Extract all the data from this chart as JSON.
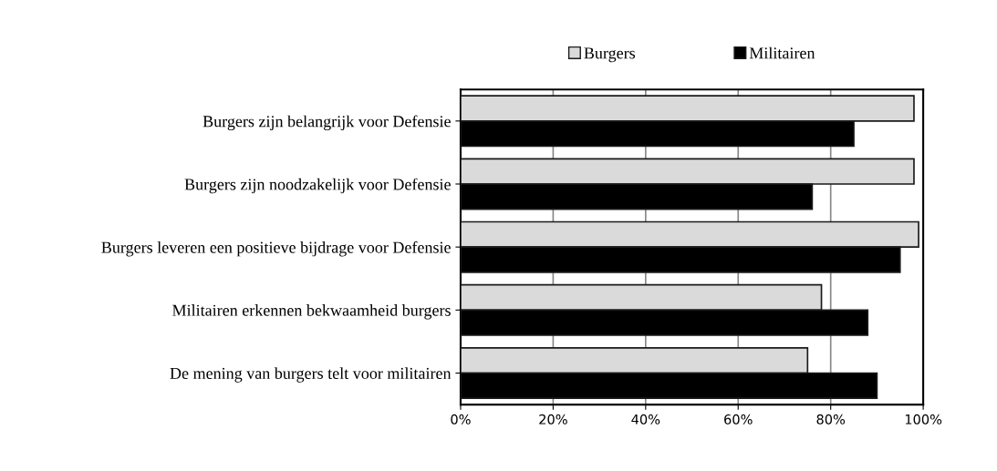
{
  "chart_data": {
    "type": "bar",
    "orientation": "horizontal",
    "categories": [
      "Burgers zijn belangrijk voor Defensie",
      "Burgers zijn noodzakelijk voor Defensie",
      "Burgers leveren een positieve bijdrage voor Defensie",
      "Militairen erkennen bekwaamheid burgers",
      "De mening van burgers telt voor militairen"
    ],
    "series": [
      {
        "name": "Burgers",
        "color": "#d9dad9",
        "values": [
          98,
          98,
          99,
          78,
          75
        ]
      },
      {
        "name": "Militairen",
        "color": "#000000",
        "values": [
          85,
          76,
          95,
          88,
          90
        ]
      }
    ],
    "xlim": [
      0,
      100
    ],
    "xticks": [
      {
        "value": 0,
        "label": "0%"
      },
      {
        "value": 20,
        "label": "20%"
      },
      {
        "value": 40,
        "label": "40%"
      },
      {
        "value": 60,
        "label": "60%"
      },
      {
        "value": 80,
        "label": "80%"
      },
      {
        "value": 100,
        "label": "100%"
      }
    ],
    "grid": "x",
    "legend": "top"
  }
}
